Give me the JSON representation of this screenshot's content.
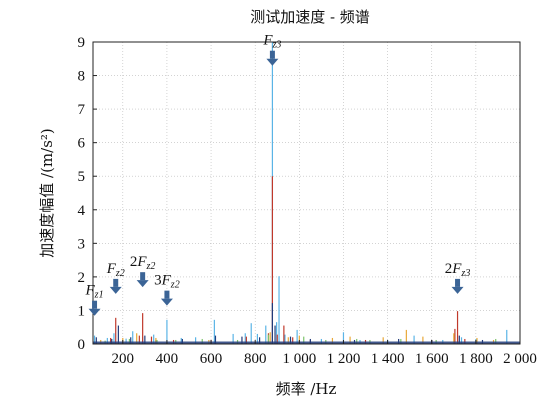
{
  "chart_data": {
    "type": "line",
    "title": "测试加速度 - 频谱",
    "xlabel": "频率 /Hz",
    "ylabel": "加速度幅值 /(m/s²)",
    "xlim": [
      65,
      2000
    ],
    "ylim": [
      0,
      9
    ],
    "xticks": [
      200,
      400,
      600,
      800,
      1000,
      1200,
      1400,
      1600,
      1800,
      2000
    ],
    "xtick_labels": [
      "200",
      "400",
      "600",
      "800",
      "1 000",
      "1 200",
      "1 400",
      "1 600",
      "1 800",
      "2 000"
    ],
    "yticks": [
      0,
      1,
      2,
      3,
      4,
      5,
      6,
      7,
      8,
      9
    ],
    "ytick_labels": [
      "0",
      "1",
      "2",
      "3",
      "4",
      "5",
      "6",
      "7",
      "8",
      "9"
    ],
    "grid": true,
    "series": [
      {
        "color": "#5ab4e6",
        "points": [
          [
            72,
            0.25
          ],
          [
            130,
            0.18
          ],
          [
            160,
            0.32
          ],
          [
            215,
            0.16
          ],
          [
            245,
            0.38
          ],
          [
            290,
            0.22
          ],
          [
            340,
            0.28
          ],
          [
            400,
            0.72
          ],
          [
            465,
            0.18
          ],
          [
            530,
            0.2
          ],
          [
            615,
            0.72
          ],
          [
            700,
            0.3
          ],
          [
            755,
            0.32
          ],
          [
            782,
            0.62
          ],
          [
            810,
            0.3
          ],
          [
            848,
            0.55
          ],
          [
            878,
            9.0
          ],
          [
            897,
            0.65
          ],
          [
            908,
            2.02
          ],
          [
            935,
            0.28
          ],
          [
            990,
            0.42
          ],
          [
            1100,
            0.15
          ],
          [
            1200,
            0.35
          ],
          [
            1275,
            0.12
          ],
          [
            1400,
            0.12
          ],
          [
            1520,
            0.25
          ],
          [
            1650,
            0.12
          ],
          [
            1735,
            0.2
          ],
          [
            1800,
            0.15
          ],
          [
            1940,
            0.42
          ]
        ]
      },
      {
        "color": "#c0392b",
        "points": [
          [
            145,
            0.18
          ],
          [
            168,
            0.78
          ],
          [
            275,
            0.25
          ],
          [
            290,
            0.92
          ],
          [
            330,
            0.22
          ],
          [
            430,
            0.12
          ],
          [
            600,
            0.12
          ],
          [
            760,
            0.22
          ],
          [
            860,
            0.32
          ],
          [
            878,
            5.0
          ],
          [
            900,
            0.28
          ],
          [
            930,
            0.55
          ],
          [
            970,
            0.2
          ],
          [
            1050,
            0.12
          ],
          [
            1300,
            0.12
          ],
          [
            1600,
            0.12
          ],
          [
            1705,
            0.45
          ],
          [
            1717,
            0.98
          ],
          [
            1750,
            0.15
          ]
        ]
      },
      {
        "color": "#223b7a",
        "points": [
          [
            80,
            0.2
          ],
          [
            150,
            0.15
          ],
          [
            180,
            0.55
          ],
          [
            236,
            0.2
          ],
          [
            300,
            0.25
          ],
          [
            350,
            0.12
          ],
          [
            470,
            0.15
          ],
          [
            620,
            0.25
          ],
          [
            740,
            0.22
          ],
          [
            820,
            0.2
          ],
          [
            878,
            1.22
          ],
          [
            890,
            0.55
          ],
          [
            960,
            0.22
          ],
          [
            1050,
            0.15
          ],
          [
            1250,
            0.12
          ],
          [
            1450,
            0.15
          ],
          [
            1600,
            0.12
          ],
          [
            1725,
            0.25
          ],
          [
            1830,
            0.12
          ]
        ]
      },
      {
        "color": "#e8a838",
        "points": [
          [
            100,
            0.12
          ],
          [
            200,
            0.18
          ],
          [
            263,
            0.32
          ],
          [
            350,
            0.18
          ],
          [
            590,
            0.12
          ],
          [
            868,
            0.35
          ],
          [
            950,
            0.2
          ],
          [
            1000,
            0.25
          ],
          [
            1150,
            0.18
          ],
          [
            1230,
            0.22
          ],
          [
            1380,
            0.2
          ],
          [
            1485,
            0.42
          ],
          [
            1560,
            0.22
          ],
          [
            1700,
            0.32
          ],
          [
            1805,
            0.18
          ],
          [
            1880,
            0.12
          ]
        ]
      },
      {
        "color": "#7cc36a",
        "points": [
          [
            120,
            0.1
          ],
          [
            230,
            0.15
          ],
          [
            355,
            0.12
          ],
          [
            440,
            0.12
          ],
          [
            560,
            0.15
          ],
          [
            720,
            0.12
          ],
          [
            860,
            0.28
          ],
          [
            1020,
            0.22
          ],
          [
            1120,
            0.12
          ],
          [
            1260,
            0.15
          ],
          [
            1320,
            0.12
          ],
          [
            1460,
            0.15
          ],
          [
            1620,
            0.12
          ],
          [
            1890,
            0.15
          ]
        ]
      }
    ],
    "annotations": [
      {
        "number": "",
        "symbol": "F",
        "subscript": "z1",
        "x": 72,
        "label_y": 1.35
      },
      {
        "number": "",
        "symbol": "F",
        "subscript": "z2",
        "x": 168,
        "label_y": 2.0
      },
      {
        "number": "2",
        "symbol": "F",
        "subscript": "z2",
        "x": 290,
        "label_y": 2.2
      },
      {
        "number": "3",
        "symbol": "F",
        "subscript": "z2",
        "x": 400,
        "label_y": 1.65
      },
      {
        "number": "",
        "symbol": "F",
        "subscript": "z3",
        "x": 878,
        "label_y": 8.8
      },
      {
        "number": "2",
        "symbol": "F",
        "subscript": "z3",
        "x": 1717,
        "label_y": 2.0
      }
    ],
    "arrow_color": "#3b6496"
  }
}
